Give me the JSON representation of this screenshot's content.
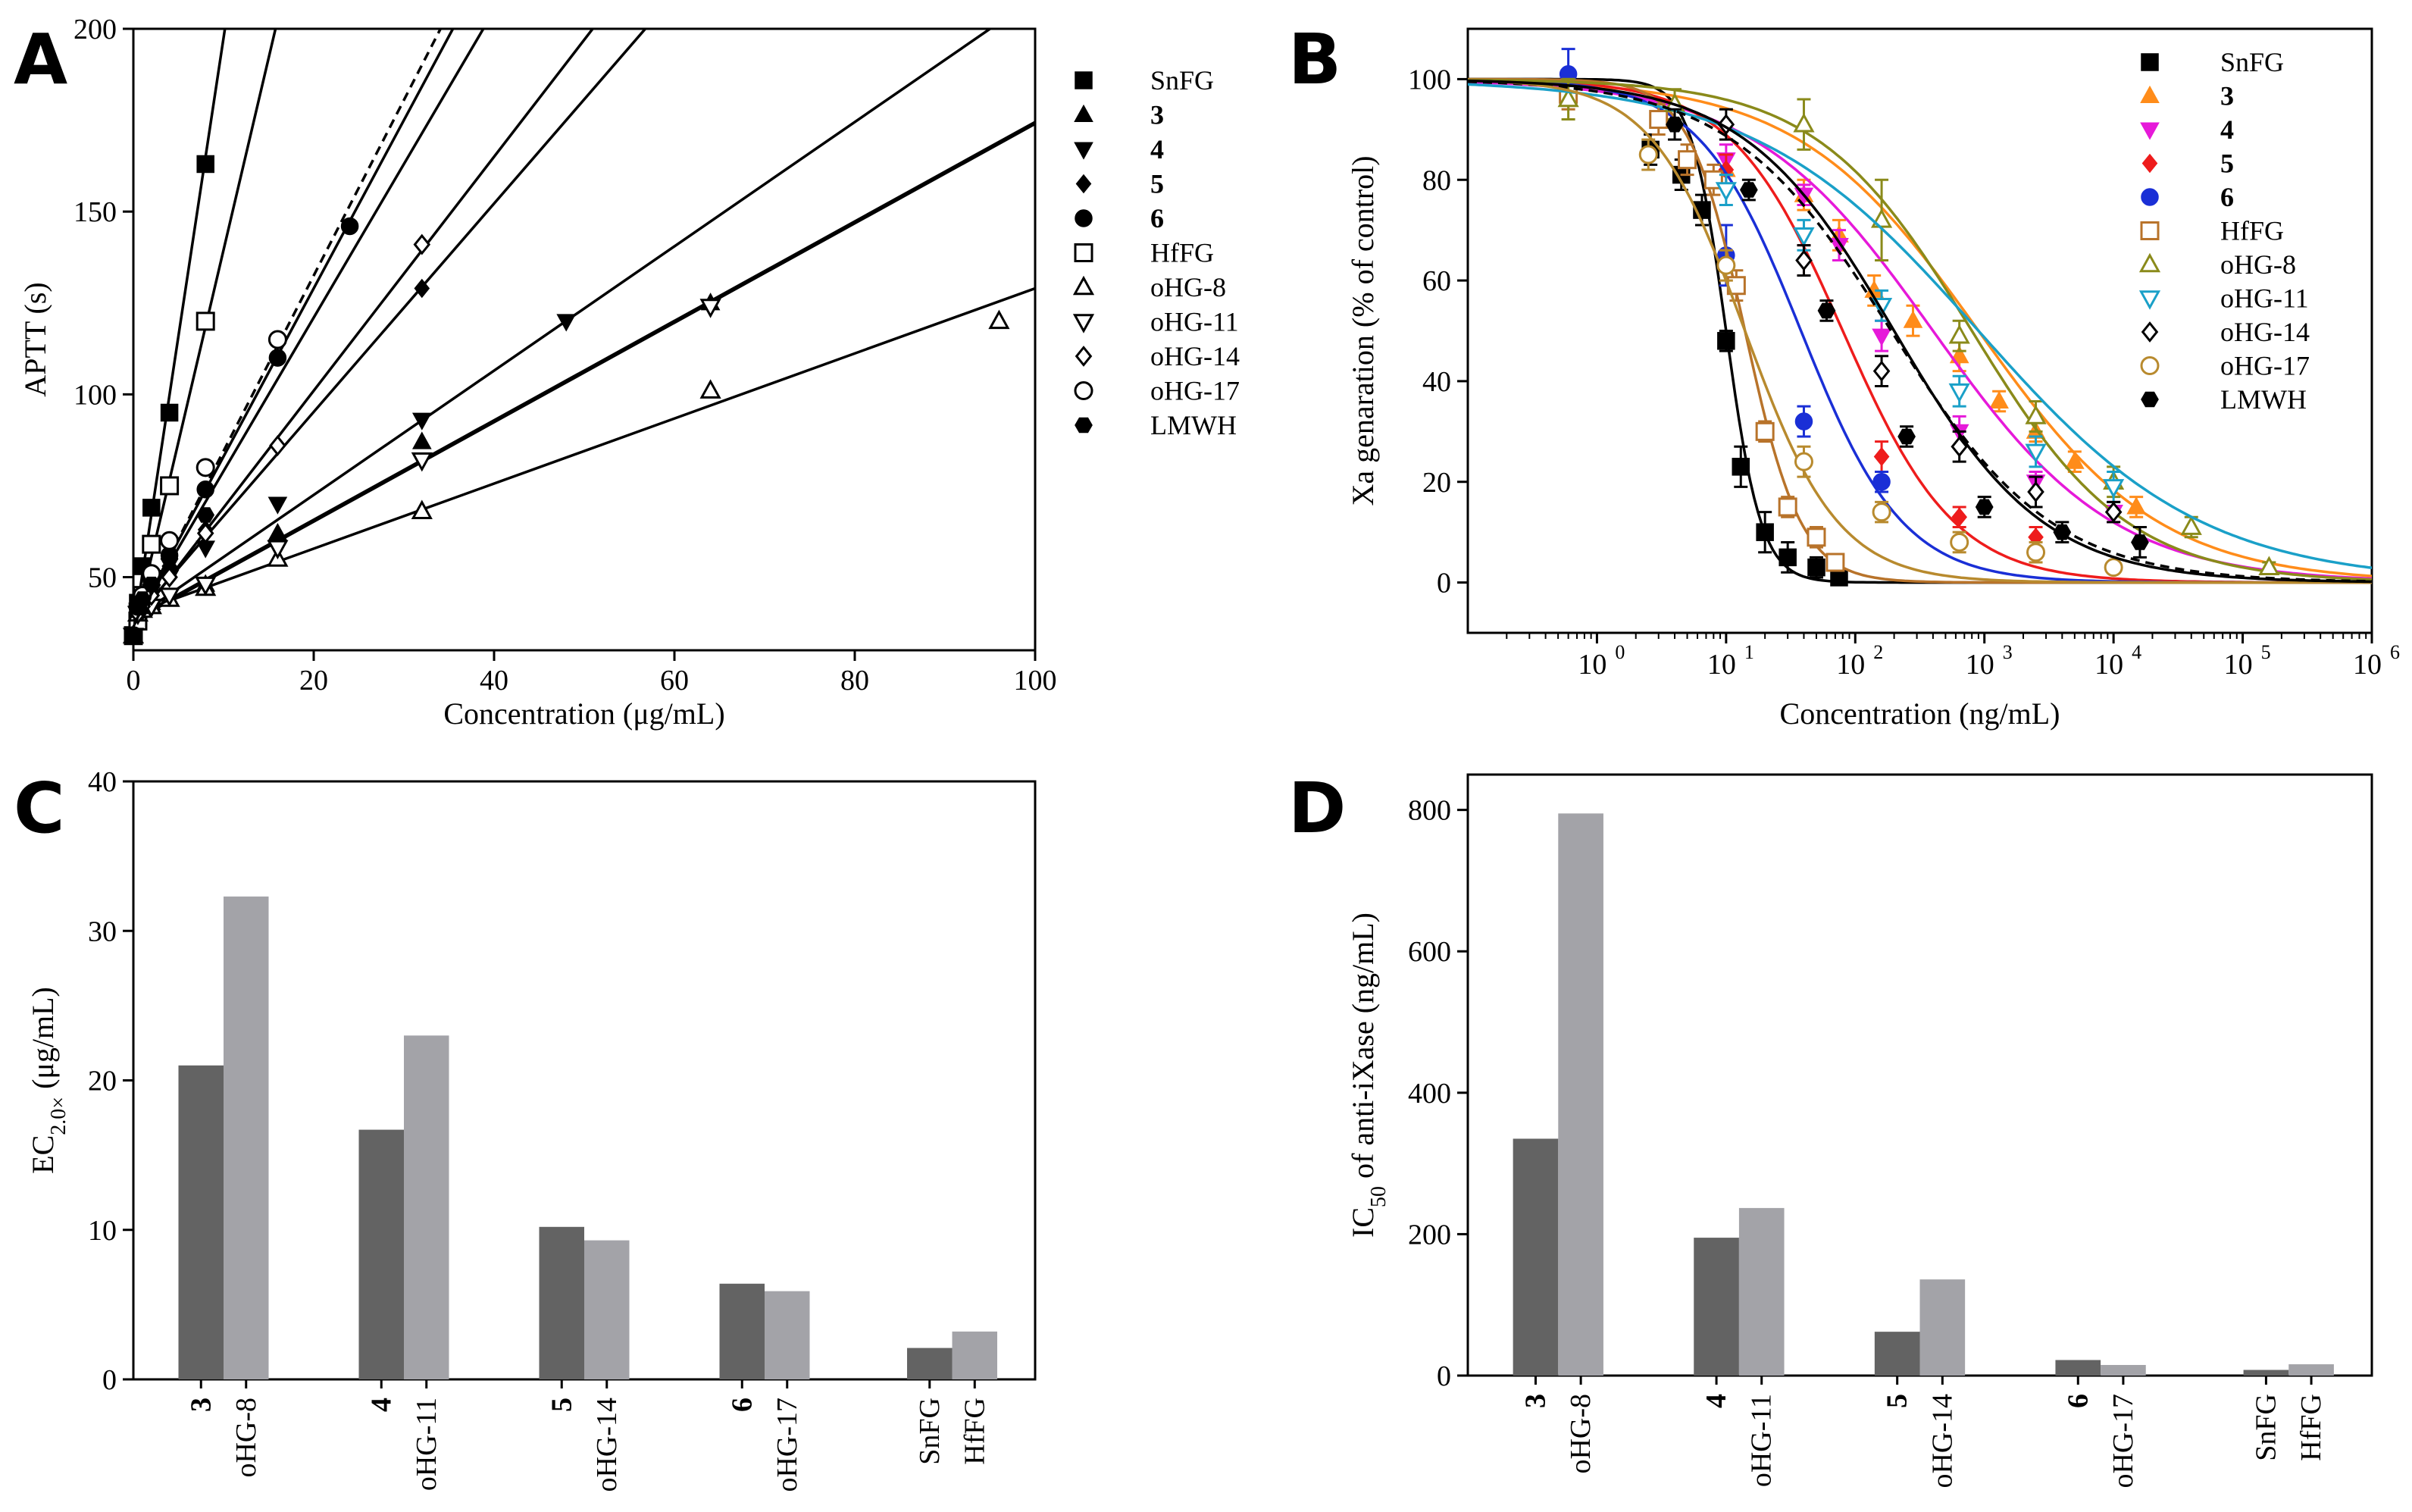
{
  "chart_data": [
    {
      "panel": "A",
      "type": "scatter",
      "xlabel": "Concentration (μg/mL)",
      "ylabel": "APTT (s)",
      "xlim": [
        0,
        100
      ],
      "ylim": [
        30,
        200
      ],
      "xticks": [
        0,
        20,
        40,
        60,
        80,
        100
      ],
      "yticks": [
        50,
        100,
        150,
        200
      ],
      "legend_position": "right",
      "series": [
        {
          "name": "SnFG",
          "bold": false,
          "marker": "square-filled",
          "line": "solid",
          "x": [
            0,
            0.5,
            1,
            2,
            4,
            8
          ],
          "y": [
            34,
            43,
            53,
            69,
            95,
            163
          ],
          "fit": {
            "intercept": 34.5,
            "slope": 16.3
          }
        },
        {
          "name": "3",
          "bold": true,
          "marker": "triangle-up-filled",
          "line": "solid",
          "x": [
            0,
            0.5,
            1,
            2,
            4,
            8,
            16,
            32,
            64
          ],
          "y": [
            34,
            40,
            41,
            43,
            44,
            48,
            62,
            87,
            125
          ],
          "fit": {
            "intercept": 38,
            "slope": 1.36
          }
        },
        {
          "name": "4",
          "bold": true,
          "marker": "triangle-down-filled",
          "line": "solid",
          "x": [
            0,
            0.5,
            1,
            2,
            4,
            8,
            16,
            32,
            48
          ],
          "y": [
            34,
            41,
            43,
            46,
            50,
            58,
            70,
            93,
            120
          ],
          "fit": {
            "intercept": 38.5,
            "slope": 1.7
          }
        },
        {
          "name": "5",
          "bold": true,
          "marker": "diamond-filled",
          "line": "solid",
          "x": [
            0,
            0.5,
            1,
            2,
            4,
            8,
            16,
            32
          ],
          "y": [
            34,
            41,
            44,
            47,
            53,
            63,
            86,
            129
          ],
          "fit": {
            "intercept": 38.2,
            "slope": 2.85
          }
        },
        {
          "name": "6",
          "bold": true,
          "marker": "circle-filled",
          "line": "solid",
          "x": [
            0,
            0.5,
            1,
            2,
            4,
            8,
            16,
            24
          ],
          "y": [
            34,
            42,
            45,
            49,
            56,
            74,
            110,
            146
          ],
          "fit": {
            "intercept": 37,
            "slope": 4.6
          }
        },
        {
          "name": "HfFG",
          "bold": false,
          "marker": "square-open",
          "line": "solid",
          "x": [
            0,
            0.5,
            1,
            2,
            4,
            8
          ],
          "y": [
            34,
            38,
            45,
            59,
            75,
            120
          ],
          "fit": {
            "intercept": 34.5,
            "slope": 10.5
          }
        },
        {
          "name": "oHG-8",
          "bold": false,
          "marker": "triangle-up-open",
          "line": "solid",
          "x": [
            0,
            0.5,
            1,
            2,
            4,
            8,
            16,
            32,
            64,
            96
          ],
          "y": [
            34,
            40,
            41,
            42,
            44,
            47,
            55,
            68,
            101,
            120
          ],
          "fit": {
            "intercept": 40,
            "slope": 0.89
          }
        },
        {
          "name": "oHG-11",
          "bold": false,
          "marker": "triangle-down-open",
          "line": "solid",
          "x": [
            0,
            0.5,
            1,
            2,
            4,
            8,
            16,
            32,
            64
          ],
          "y": [
            34,
            40,
            41,
            42,
            45,
            48,
            58,
            82,
            124
          ],
          "fit": {
            "intercept": 38.5,
            "slope": 1.36
          }
        },
        {
          "name": "oHG-14",
          "bold": false,
          "marker": "diamond-open",
          "line": "solid",
          "x": [
            0,
            0.5,
            1,
            2,
            4,
            8,
            16,
            32
          ],
          "y": [
            34,
            40,
            42,
            45,
            50,
            62,
            86,
            141
          ],
          "fit": {
            "intercept": 37,
            "slope": 3.2
          }
        },
        {
          "name": "oHG-17",
          "bold": false,
          "marker": "circle-open",
          "line": "dashed",
          "x": [
            0,
            0.5,
            1,
            2,
            4,
            8,
            16
          ],
          "y": [
            34,
            42,
            45,
            51,
            60,
            80,
            115
          ],
          "fit": {
            "intercept": 36.5,
            "slope": 4.8
          }
        },
        {
          "name": "LMWH",
          "bold": false,
          "marker": "hexagon-filled",
          "line": "solid",
          "x": [
            0,
            0.5,
            1,
            2,
            4,
            8
          ],
          "y": [
            34,
            42,
            44,
            48,
            55,
            67
          ],
          "fit": {
            "intercept": 37,
            "slope": 4.2
          }
        }
      ]
    },
    {
      "panel": "B",
      "type": "scatter",
      "xlabel": "Concentration (ng/mL)",
      "ylabel": "Xa genaration (% of control)",
      "xscale": "log",
      "xlim": [
        0.1,
        1000000
      ],
      "ylim": [
        -10,
        110
      ],
      "xticks": [
        1,
        10,
        100,
        1000,
        10000,
        100000,
        1000000
      ],
      "xtick_exponents": [
        "0",
        "1",
        "2",
        "3",
        "4",
        "5",
        "6"
      ],
      "yticks": [
        0,
        20,
        40,
        60,
        80,
        100
      ],
      "legend_position": "top-right",
      "series": [
        {
          "name": "SnFG",
          "bold": false,
          "color": "#000000",
          "marker": "square-filled",
          "line": "solid",
          "ic50": 10,
          "hill": 3.2,
          "x": [
            2.6,
            4.5,
            6.5,
            10,
            13,
            20,
            30,
            50,
            75
          ],
          "y": [
            86,
            81,
            74,
            48,
            23,
            10,
            5,
            3,
            1
          ],
          "err": [
            3,
            3,
            3,
            2,
            4,
            4,
            3,
            2,
            1
          ]
        },
        {
          "name": "3",
          "bold": true,
          "color": "#ff8c1a",
          "marker": "triangle-up-filled",
          "line": "solid",
          "ic50": 900,
          "hill": 0.62,
          "x": [
            10,
            40,
            75,
            140,
            280,
            640,
            1300,
            2500,
            5000,
            15000
          ],
          "y": [
            82,
            77,
            69,
            58,
            52,
            45,
            36,
            30,
            24,
            15
          ],
          "err": [
            3,
            3,
            3,
            3,
            3,
            3,
            2,
            2,
            2,
            2
          ]
        },
        {
          "name": "4",
          "bold": true,
          "color": "#e619d9",
          "marker": "triangle-down-filled",
          "line": "solid",
          "ic50": 400,
          "hill": 0.62,
          "x": [
            10,
            40,
            75,
            160,
            640,
            2500,
            10000
          ],
          "y": [
            84,
            77,
            67,
            49,
            30,
            20,
            14
          ],
          "err": [
            3,
            2,
            3,
            3,
            3,
            2,
            2
          ]
        },
        {
          "name": "5",
          "bold": true,
          "color": "#ee1c1c",
          "marker": "diamond-filled",
          "line": "solid",
          "ic50": 80,
          "hill": 1.0,
          "x": [
            10,
            40,
            160,
            640,
            2500
          ],
          "y": [
            82,
            64,
            25,
            13,
            9
          ],
          "err": [
            3,
            3,
            3,
            2,
            2
          ]
        },
        {
          "name": "6",
          "bold": true,
          "color": "#1a2fd6",
          "marker": "circle-filled",
          "line": "solid",
          "ic50": 38,
          "hill": 1.1,
          "x": [
            0.6,
            10,
            40,
            160
          ],
          "y": [
            101,
            65,
            32,
            20
          ],
          "err": [
            5,
            6,
            3,
            2
          ]
        },
        {
          "name": "HfFG",
          "bold": false,
          "color": "#b8732a",
          "marker": "square-open",
          "line": "solid",
          "ic50": 14,
          "hill": 2.0,
          "x": [
            0.6,
            3,
            5,
            8,
            12,
            20,
            30,
            50,
            70
          ],
          "y": [
            97,
            92,
            84,
            80,
            59,
            30,
            15,
            9,
            4
          ],
          "err": [
            3,
            3,
            3,
            3,
            3,
            2,
            2,
            2,
            1
          ]
        },
        {
          "name": "oHG-8",
          "bold": false,
          "color": "#8a8a1a",
          "marker": "triangle-up-open",
          "line": "solid",
          "ic50": 800,
          "hill": 0.72,
          "x": [
            0.6,
            4,
            40,
            160,
            640,
            2500,
            10000,
            40000,
            160000
          ],
          "y": [
            96,
            95,
            91,
            72,
            49,
            33,
            20,
            11,
            3
          ],
          "err": [
            4,
            3,
            5,
            8,
            3,
            3,
            3,
            2,
            1
          ]
        },
        {
          "name": "oHG-11",
          "bold": false,
          "color": "#1aa0c8",
          "marker": "triangle-down-open",
          "line": "solid",
          "ic50": 900,
          "hill": 0.5,
          "x": [
            10,
            40,
            160,
            640,
            2500,
            10000
          ],
          "y": [
            78,
            69,
            55,
            38,
            26,
            19
          ],
          "err": [
            3,
            3,
            3,
            3,
            3,
            3
          ]
        },
        {
          "name": "oHG-14",
          "bold": false,
          "color": "#000000",
          "marker": "diamond-open",
          "line": "dashed",
          "ic50": 190,
          "hill": 0.7,
          "x": [
            10,
            40,
            160,
            640,
            2500,
            10000
          ],
          "y": [
            91,
            64,
            42,
            27,
            18,
            14
          ],
          "err": [
            3,
            3,
            3,
            3,
            3,
            2
          ]
        },
        {
          "name": "oHG-17",
          "bold": false,
          "color": "#b88a2e",
          "marker": "circle-open",
          "line": "solid",
          "ic50": 14,
          "hill": 1.2,
          "x": [
            2.5,
            10,
            40,
            160,
            640,
            2500,
            10000
          ],
          "y": [
            85,
            63,
            24,
            14,
            8,
            6,
            3
          ],
          "err": [
            3,
            3,
            3,
            2,
            2,
            2,
            1
          ]
        },
        {
          "name": "LMWH",
          "bold": false,
          "color": "#000000",
          "marker": "hexagon-filled",
          "line": "solid",
          "ic50": 200,
          "hill": 0.75,
          "x": [
            4,
            15,
            60,
            250,
            1000,
            4000,
            16000
          ],
          "y": [
            91,
            78,
            54,
            29,
            15,
            10,
            8
          ],
          "err": [
            3,
            2,
            2,
            2,
            2,
            2,
            3
          ]
        }
      ]
    },
    {
      "panel": "C",
      "type": "bar",
      "ylabel": "EC2.0× (μg/mL)",
      "ylabel_main": "EC",
      "ylabel_sub": "2.0×",
      "ylabel_unit": " (μg/mL)",
      "ylim": [
        0,
        40
      ],
      "yticks": [
        0,
        10,
        20,
        30,
        40
      ],
      "groups": [
        {
          "label_top": "3",
          "label_bottom": "oHG-8",
          "values": [
            21.0,
            32.3
          ]
        },
        {
          "label_top": "4",
          "label_bottom": "oHG-11",
          "values": [
            16.7,
            23.0
          ]
        },
        {
          "label_top": "5",
          "label_bottom": "oHG-14",
          "values": [
            10.2,
            9.3
          ]
        },
        {
          "label_top": "6",
          "label_bottom": "oHG-17",
          "values": [
            6.4,
            5.9
          ]
        },
        {
          "label_top": "SnFG",
          "label_bottom": "HfFG",
          "values": [
            2.1,
            3.2
          ],
          "separate": true
        }
      ],
      "colors": [
        "#636363",
        "#a3a3a8"
      ]
    },
    {
      "panel": "D",
      "type": "bar",
      "ylabel": "IC50 of anti-iXase (ng/mL)",
      "ylabel_main": "IC",
      "ylabel_sub": "50",
      "ylabel_unit": " of anti-iXase (ng/mL)",
      "ylim": [
        0,
        850
      ],
      "yticks": [
        0,
        200,
        400,
        600,
        800
      ],
      "groups": [
        {
          "label_top": "3",
          "label_bottom": "oHG-8",
          "values": [
            335,
            795
          ]
        },
        {
          "label_top": "4",
          "label_bottom": "oHG-11",
          "values": [
            195,
            237
          ]
        },
        {
          "label_top": "5",
          "label_bottom": "oHG-14",
          "values": [
            62,
            136
          ]
        },
        {
          "label_top": "6",
          "label_bottom": "oHG-17",
          "values": [
            22,
            15
          ]
        },
        {
          "label_top": "SnFG",
          "label_bottom": "HfFG",
          "values": [
            8,
            16
          ],
          "separate": true
        }
      ],
      "colors": [
        "#636363",
        "#a3a3a8"
      ]
    }
  ],
  "panel_letters": [
    "A",
    "B",
    "C",
    "D"
  ]
}
